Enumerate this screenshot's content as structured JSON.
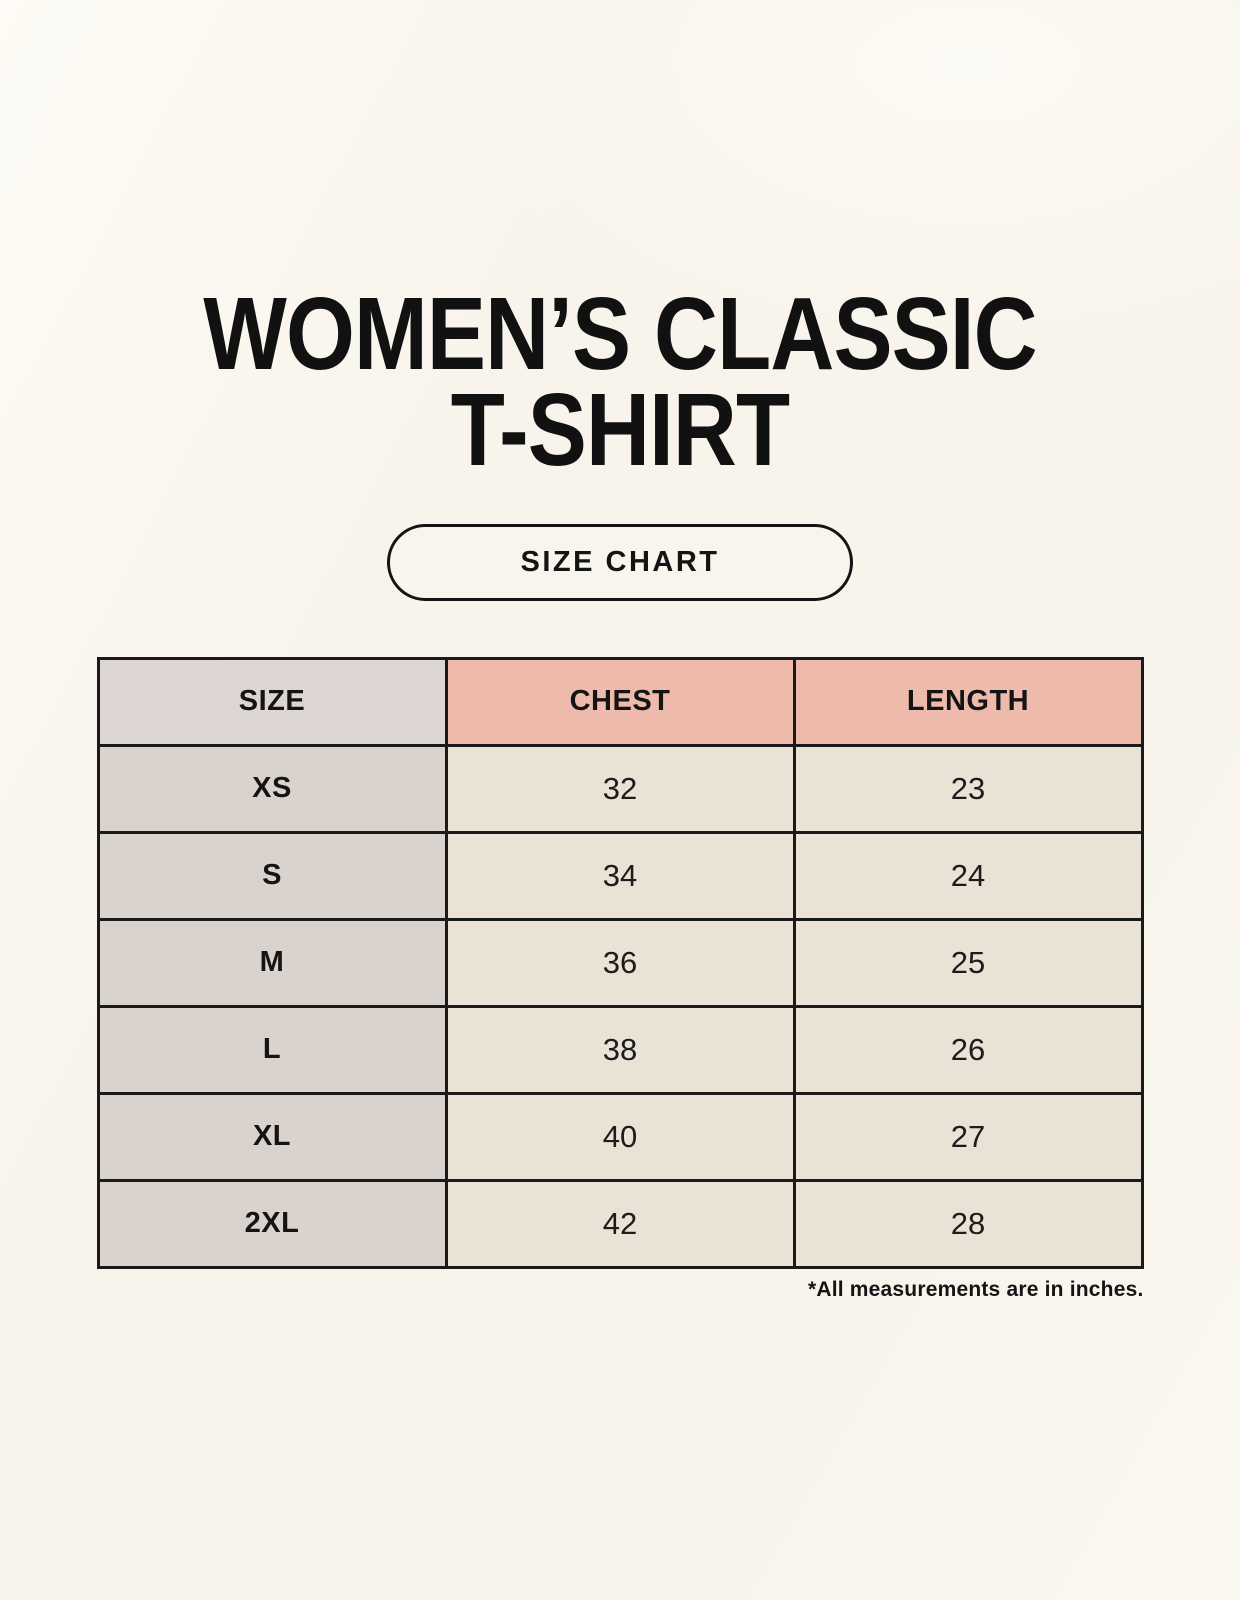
{
  "page": {
    "title_line1": "WOMEN’S CLASSIC",
    "title_line2": "T-SHIRT",
    "badge_label": "SIZE CHART",
    "footnote": "*All measurements are in inches."
  },
  "chart_data": {
    "type": "table",
    "title": "Women’s Classic T-Shirt Size Chart",
    "columns": [
      "SIZE",
      "CHEST",
      "LENGTH"
    ],
    "units": "inches",
    "rows": [
      {
        "size": "XS",
        "chest": 32,
        "length": 23
      },
      {
        "size": "S",
        "chest": 34,
        "length": 24
      },
      {
        "size": "M",
        "chest": 36,
        "length": 25
      },
      {
        "size": "L",
        "chest": 38,
        "length": 26
      },
      {
        "size": "XL",
        "chest": 40,
        "length": 27
      },
      {
        "size": "2XL",
        "chest": 42,
        "length": 28
      }
    ]
  },
  "colors": {
    "page_background": "#f8f4eb",
    "size_column_background": "#d9d2cd",
    "measure_header_background": "#eebaac",
    "data_cell_background": "#e9e2d5",
    "border": "#1a1a1a",
    "text": "#141414"
  }
}
